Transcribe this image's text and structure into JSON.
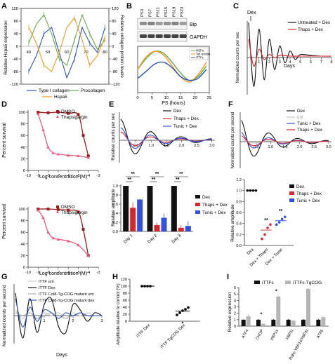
{
  "panels": {
    "A": {
      "label": "A",
      "ylabel_left": "Relative Hspa5 expression",
      "ylabel_right": "Relative collagen protein levels",
      "yticks_left": [
        "120",
        "80",
        "40",
        "0",
        "-40",
        "-80",
        "-120"
      ],
      "yticks_right": [
        "120",
        "80",
        "40",
        "0",
        "-40",
        "-80",
        "-120"
      ],
      "xticks": [
        "40",
        "50",
        "60",
        "70",
        "80"
      ],
      "legend": [
        "Type I collagen",
        "Procollagen",
        "Hspa5"
      ]
    },
    "B": {
      "label": "B",
      "lanes": [
        "PS3",
        "PS7",
        "PS11",
        "PS15",
        "PS19",
        "PS23"
      ],
      "blot1": "Bip",
      "blot2": "GAPDH",
      "xlabel": "PS (hours)",
      "xticks": [
        "0",
        "5",
        "10",
        "15",
        "20",
        "25"
      ],
      "legend": [
        "MEFs",
        "Tail tendon",
        "iTTFs"
      ]
    },
    "C": {
      "label": "C",
      "dex": "Dex",
      "ylabel": "Normalized counts per sec",
      "xlabel": "Days",
      "xticks": [
        "1",
        "2",
        "3",
        "4",
        "5",
        "6",
        "7",
        "8"
      ],
      "legend": [
        "Untreated + Dex",
        "Thaps + Dex"
      ]
    },
    "D": {
      "label": "D",
      "ylabel": "Percent survival",
      "xlabel": "Log concentration (M)",
      "yticks": [
        "100",
        "80",
        "60",
        "40",
        "20",
        "0"
      ],
      "xticks": [
        "-10",
        "-9",
        "-8",
        "-7",
        "-6",
        "-5",
        "-4",
        "-3"
      ],
      "legend": [
        "DMSO",
        "Thapsigargin"
      ]
    },
    "E": {
      "label": "E",
      "ylabel_top": "Relative counts per sec",
      "xticks_top": [
        "0.5",
        "1.0",
        "1.5",
        "2.0",
        "2.5",
        "3.0"
      ],
      "legend_top": [
        "Dex",
        "Thaps + Dex",
        "Tunic + Dex"
      ],
      "ylabel_bottom": "Relative amplitude",
      "yticks_bottom": [
        "1.0",
        "0.8",
        "0.6",
        "0.4",
        "0.2",
        "0.0"
      ],
      "days": [
        "Day 1",
        "Day 2",
        "Day 3"
      ],
      "sig": "**",
      "legend_bottom": [
        "Dex",
        "Thaps + Dex",
        "Tunic + Dex"
      ]
    },
    "F": {
      "label": "F",
      "ylabel_top": "Normalized counts per second",
      "xticks_top": [
        "0.5",
        "1.0",
        "1.5",
        "2.0",
        "2.5",
        "3.0"
      ],
      "legend_top": [
        "Dex",
        "unt",
        "Tunic + Dex",
        "Thaps + Dex"
      ],
      "ylabel_bottom": "Relative amplitude",
      "yticks_bottom": [
        "1.2",
        "1.0",
        "0.8",
        "0.6",
        "0.4",
        "0.2",
        "0.0"
      ],
      "categories": [
        "Dex",
        "Dex + Thaps",
        "Dex + Tunic"
      ],
      "sig": "**",
      "legend_bottom": [
        "Dex",
        "Thaps + Dex",
        "Tunic + Dex"
      ]
    },
    "G": {
      "label": "G",
      "ylabel": "Normalized counts per second",
      "xlabel": "Days",
      "xticks": [
        "1",
        "2",
        "3"
      ],
      "legend": [
        "iTTF unt",
        "iTTF Dex",
        "iTTF Col8-Tg-COG mutant unt",
        "iTTF Col8-Tg-COG mutant dex"
      ]
    },
    "H": {
      "label": "H",
      "ylabel": "Amplitude relative to control (%)",
      "yticks": [
        "120",
        "100",
        "80",
        "60",
        "40",
        "20",
        "0"
      ],
      "categories": [
        "iTTF Dex",
        "iTTF TgCOG Dex"
      ],
      "sig": "*"
    },
    "I": {
      "label": "I",
      "ylabel": "Relative expression",
      "yticks": [
        "6",
        "5",
        "4",
        "3",
        "2",
        "1",
        "0"
      ],
      "categories": [
        "ATF4",
        "CHOP",
        "XBP1s",
        "XBP1t",
        "Ratio XBP1s/XBP1t",
        "ATF6"
      ],
      "legend": [
        "iTTFs",
        "iTTFs-TgCOG"
      ],
      "sig": "*"
    }
  },
  "colors": {
    "blue": "#2d55b5",
    "orange": "#f39a1f",
    "green": "#6aa84f",
    "red": "#d9262a",
    "darkred": "#9b1b1b",
    "black": "#111111",
    "grey": "#9a9a9a",
    "lightgrey": "#c8c8c8",
    "tunicblue": "#3450e0",
    "pink": "#e85a7a"
  },
  "chart_data": [
    {
      "panel": "A",
      "type": "line",
      "ylim": [
        -120,
        120
      ],
      "xlim": [
        36,
        82
      ],
      "series": [
        {
          "name": "Type I collagen",
          "x": [
            40,
            44,
            48,
            52,
            56,
            60,
            64,
            68,
            72,
            76,
            80
          ],
          "y": [
            -80,
            -30,
            40,
            60,
            -20,
            -100,
            -40,
            60,
            10,
            -20,
            60
          ]
        },
        {
          "name": "Procollagen",
          "x": [
            40,
            44,
            48,
            52,
            56,
            60,
            64,
            68,
            72,
            76,
            80
          ],
          "y": [
            10,
            70,
            100,
            40,
            -40,
            -60,
            20,
            100,
            40,
            -10,
            20
          ]
        },
        {
          "name": "Hspa5",
          "x": [
            40,
            44,
            48,
            52,
            56,
            60,
            64,
            68,
            72,
            76,
            80
          ],
          "y": [
            60,
            10,
            -60,
            -80,
            -20,
            60,
            90,
            20,
            -60,
            -30,
            30
          ]
        }
      ]
    },
    {
      "panel": "B",
      "type": "line",
      "xlim": [
        0,
        25
      ],
      "series": [
        {
          "name": "MEFs",
          "x": [
            0,
            3,
            6,
            9,
            12,
            15,
            18,
            21,
            24
          ],
          "y": [
            0.0,
            0.6,
            1.0,
            0.9,
            0.4,
            -0.2,
            -0.6,
            -0.4,
            0.2
          ]
        },
        {
          "name": "Tail tendon",
          "x": [
            0,
            3,
            6,
            9,
            12,
            15,
            18,
            21,
            24
          ],
          "y": [
            0.0,
            0.7,
            1.0,
            0.8,
            0.2,
            -0.4,
            -0.7,
            -0.3,
            0.4
          ]
        },
        {
          "name": "iTTFs",
          "x": [
            0,
            3,
            6,
            9,
            12,
            15,
            18,
            21,
            24
          ],
          "y": [
            -0.5,
            -0.1,
            0.3,
            0.4,
            0.1,
            -0.4,
            -0.6,
            -0.5,
            0.0
          ]
        }
      ]
    },
    {
      "panel": "C",
      "type": "line",
      "xlim": [
        0,
        8
      ],
      "series": [
        {
          "name": "Untreated + Dex",
          "x": [
            0,
            0.5,
            1,
            1.5,
            2,
            2.5,
            3,
            3.5,
            4,
            4.5,
            5,
            6,
            7,
            8
          ],
          "y": [
            1.0,
            -0.9,
            0.8,
            -0.7,
            0.5,
            -0.4,
            0.3,
            -0.2,
            0.15,
            -0.1,
            0.05,
            0.02,
            0.0,
            0.0
          ]
        },
        {
          "name": "Thaps + Dex",
          "x": [
            0,
            0.5,
            1,
            1.5,
            2,
            2.5,
            3,
            4,
            5,
            6,
            7,
            8
          ],
          "y": [
            0.5,
            -0.3,
            0.2,
            -0.1,
            0.05,
            -0.05,
            0.02,
            0.0,
            0.0,
            0.0,
            0.0,
            0.0
          ]
        }
      ]
    },
    {
      "panel": "D",
      "type": "scatter",
      "charts": [
        {
          "series": [
            {
              "name": "DMSO",
              "x": [
                -9,
                -8,
                -7,
                -6,
                -5,
                -4.5,
                -4
              ],
              "y": [
                100,
                99,
                100,
                98,
                96,
                60,
                25
              ]
            },
            {
              "name": "Thapsigargin",
              "x": [
                -9,
                -8.5,
                -8,
                -7.5,
                -7,
                -6,
                -5,
                -4
              ],
              "y": [
                97,
                70,
                40,
                30,
                28,
                26,
                25,
                22
              ]
            }
          ]
        },
        {
          "series": [
            {
              "name": "DMSO",
              "x": [
                -9,
                -8,
                -7,
                -6,
                -5,
                -4.5,
                -4
              ],
              "y": [
                100,
                100,
                99,
                98,
                95,
                65,
                20
              ]
            },
            {
              "name": "Thapsigargin",
              "x": [
                -9,
                -8.5,
                -8,
                -7.5,
                -7,
                -6,
                -5,
                -4
              ],
              "y": [
                98,
                85,
                60,
                50,
                48,
                45,
                38,
                20
              ]
            }
          ]
        }
      ],
      "xlim": [
        -10,
        -3
      ],
      "ylim": [
        0,
        100
      ]
    },
    {
      "panel": "E",
      "type": "bar",
      "categories": [
        "Day 1",
        "Day 2",
        "Day 3"
      ],
      "series": [
        {
          "name": "Dex",
          "values": [
            1.0,
            1.0,
            1.0
          ],
          "err": [
            0,
            0,
            0
          ]
        },
        {
          "name": "Thaps + Dex",
          "values": [
            0.52,
            0.14,
            0.08
          ],
          "err": [
            0.12,
            0.05,
            0.06
          ]
        },
        {
          "name": "Tunic + Dex",
          "values": [
            0.7,
            0.3,
            0.12
          ],
          "err": [
            0.02,
            0.09,
            0.1
          ]
        }
      ],
      "ylim": [
        0,
        1.0
      ]
    },
    {
      "panel": "F",
      "type": "scatter",
      "categories": [
        "Dex",
        "Dex + Thaps",
        "Dex + Tunic"
      ],
      "means": [
        1.0,
        0.28,
        0.45
      ],
      "points": [
        [
          1.0,
          1.0,
          1.0,
          1.0
        ],
        [
          0.12,
          0.2,
          0.32,
          0.38
        ],
        [
          0.38,
          0.42,
          0.48,
          0.52
        ]
      ],
      "ylim": [
        0,
        1.2
      ]
    },
    {
      "panel": "G",
      "type": "line",
      "xlim": [
        0,
        3
      ],
      "series": [
        {
          "name": "iTTF unt",
          "x": [
            0,
            0.25,
            0.5,
            0.75,
            1,
            1.25,
            1.5,
            1.75,
            2,
            2.25,
            2.5,
            2.75,
            3
          ],
          "y": [
            0.1,
            -0.05,
            0.05,
            -0.05,
            0.05,
            0,
            0.05,
            -0.05,
            0.05,
            0,
            0.05,
            0,
            0
          ]
        },
        {
          "name": "iTTF Dex",
          "x": [
            0,
            0.25,
            0.5,
            0.75,
            1,
            1.25,
            1.5,
            1.75,
            2,
            2.25,
            2.5,
            2.75,
            3
          ],
          "y": [
            0.4,
            -0.4,
            0.3,
            -0.3,
            0.2,
            0.3,
            -0.2,
            -0.3,
            0.2,
            0.1,
            -0.1,
            0.05,
            0
          ]
        },
        {
          "name": "iTTF Col8-Tg-COG mutant unt",
          "x": [
            0,
            0.25,
            0.5,
            0.75,
            1,
            1.25,
            1.5,
            1.75,
            2,
            2.25,
            2.5,
            2.75,
            3
          ],
          "y": [
            0.05,
            0,
            0.05,
            -0.05,
            0,
            0.05,
            0,
            -0.05,
            0,
            0.05,
            0,
            0,
            0
          ]
        },
        {
          "name": "iTTF Col8-Tg-COG mutant dex",
          "x": [
            0,
            0.25,
            0.5,
            0.75,
            1,
            1.25,
            1.5,
            1.75,
            2,
            2.25,
            2.5,
            2.75,
            3
          ],
          "y": [
            0.3,
            -0.2,
            0.15,
            -0.1,
            0.1,
            0.05,
            -0.05,
            0.05,
            0,
            0.05,
            0,
            0,
            0
          ]
        }
      ]
    },
    {
      "panel": "H",
      "type": "scatter",
      "categories": [
        "iTTF Dex",
        "iTTF TgCOG Dex"
      ],
      "means": [
        100,
        29
      ],
      "points": [
        [
          100,
          100,
          100,
          100
        ],
        [
          18,
          24,
          30,
          34,
          39
        ]
      ],
      "ylim": [
        0,
        120
      ]
    },
    {
      "panel": "I",
      "type": "bar",
      "categories": [
        "ATF4",
        "CHOP",
        "XBP1s",
        "XBP1t",
        "Ratio XBP1s/XBP1t",
        "ATF6"
      ],
      "series": [
        {
          "name": "iTTFs",
          "values": [
            1.0,
            1.0,
            1.0,
            1.0,
            1.0,
            1.0
          ],
          "err": [
            0.05,
            0.1,
            0.1,
            0.1,
            0.1,
            0.1
          ]
        },
        {
          "name": "iTTFs-TgCOG",
          "values": [
            1.55,
            0.35,
            4.6,
            0.85,
            5.8,
            1.4
          ],
          "err": [
            0.3,
            0.1,
            0.2,
            0.1,
            0.1,
            0.1
          ]
        }
      ],
      "ylim": [
        0,
        6
      ]
    }
  ]
}
